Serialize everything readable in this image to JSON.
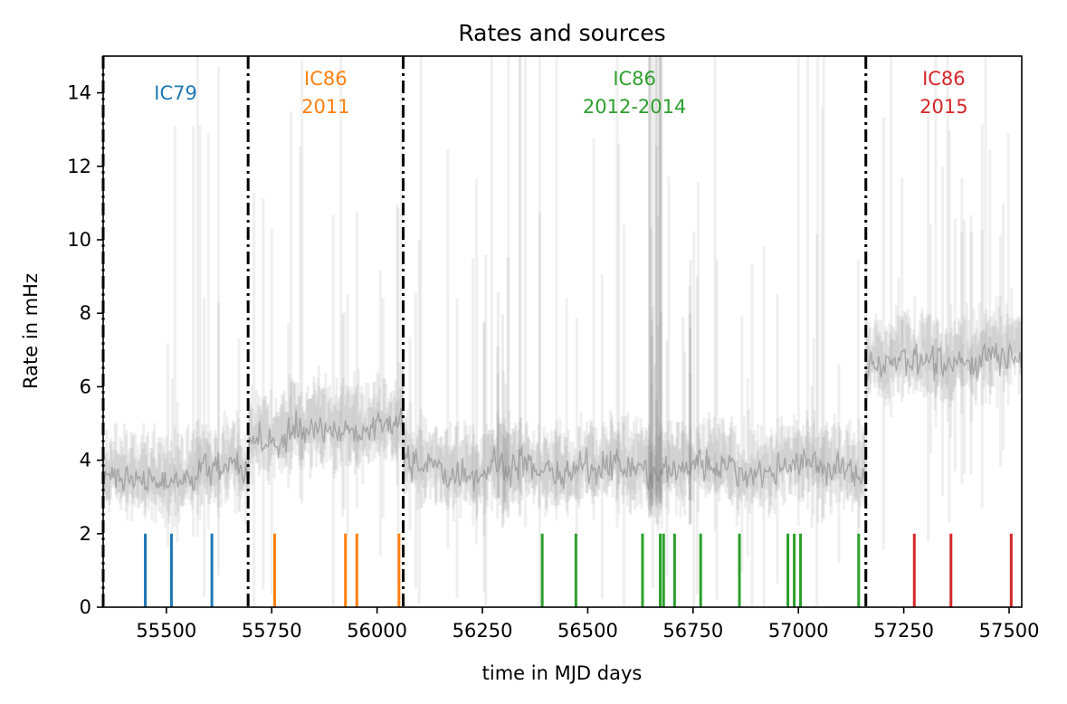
{
  "chart_data": {
    "type": "line",
    "title": "Rates and sources",
    "xlabel": "time in MJD days",
    "ylabel": "Rate in mHz",
    "xlim": [
      55350,
      57530
    ],
    "ylim": [
      0,
      15
    ],
    "xticks": [
      55500,
      55750,
      56000,
      56250,
      56500,
      56750,
      57000,
      57250,
      57500
    ],
    "yticks": [
      0,
      2,
      4,
      6,
      8,
      10,
      12,
      14
    ],
    "grid": false,
    "rate_series": {
      "color": "#808080",
      "segments": [
        {
          "x_start": 55350,
          "x_end": 55694,
          "base_start": 3.35,
          "base_end": 3.75
        },
        {
          "x_start": 55694,
          "x_end": 56062,
          "base_start": 4.55,
          "base_end": 5.05
        },
        {
          "x_start": 56062,
          "x_end": 57160,
          "base_start": 3.75,
          "base_end": 3.8
        },
        {
          "x_start": 57160,
          "x_end": 57530,
          "base_start": 6.6,
          "base_end": 6.8
        }
      ]
    },
    "season_boundaries": [
      55350,
      55694,
      56062,
      57160
    ],
    "seasons": [
      {
        "name": "IC79",
        "label_lines": [
          "IC79"
        ],
        "color": "#1f77b4",
        "label_x": 55522,
        "sources": [
          55450,
          55512,
          55608
        ]
      },
      {
        "name": "IC86 2011",
        "label_lines": [
          "IC86",
          "2011"
        ],
        "color": "#ff7f0e",
        "label_x": 55878,
        "sources": [
          55757,
          55925,
          55952,
          56052
        ]
      },
      {
        "name": "IC86 2012-2014",
        "label_lines": [
          "IC86",
          "2012-2014"
        ],
        "color": "#2ca02c",
        "label_x": 56611,
        "sources": [
          56392,
          56472,
          56630,
          56672,
          56680,
          56706,
          56768,
          56860,
          56975,
          56990,
          57005,
          57143
        ]
      },
      {
        "name": "IC86 2015",
        "label_lines": [
          "IC86",
          "2015"
        ],
        "color": "#d62728",
        "label_x": 57345,
        "sources": [
          57275,
          57362,
          57505
        ]
      }
    ],
    "source_marker_height": 2
  }
}
